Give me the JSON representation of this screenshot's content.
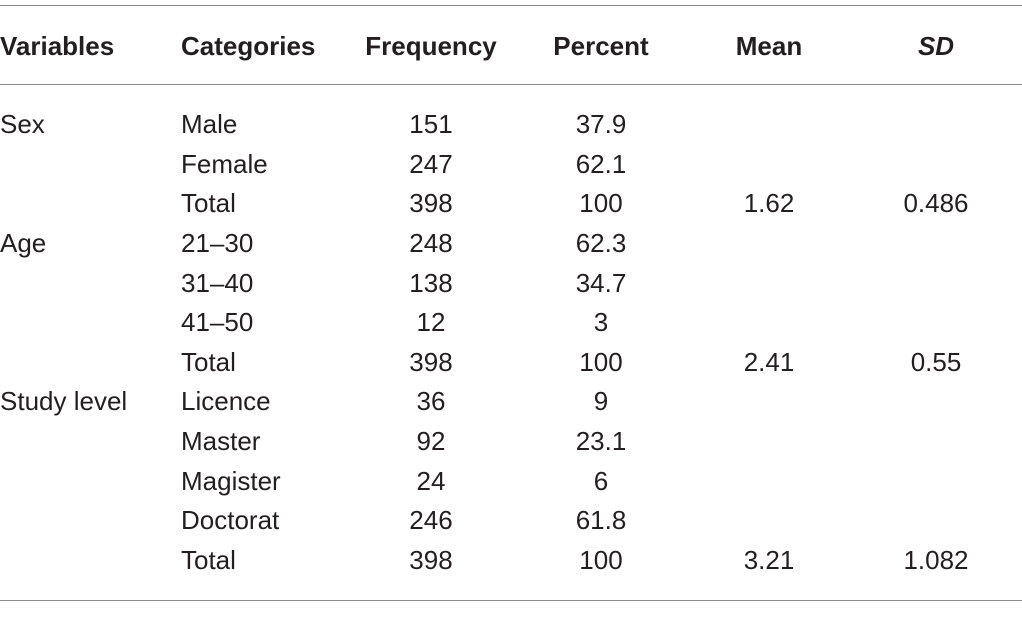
{
  "table": {
    "headers": {
      "variables": "Variables",
      "categories": "Categories",
      "frequency": "Frequency",
      "percent": "Percent",
      "mean": "Mean",
      "sd": "SD"
    },
    "rows": [
      {
        "variable": "Sex",
        "category": "Male",
        "frequency": "151",
        "percent": "37.9",
        "mean": "",
        "sd": ""
      },
      {
        "variable": "",
        "category": "Female",
        "frequency": "247",
        "percent": "62.1",
        "mean": "",
        "sd": ""
      },
      {
        "variable": "",
        "category": "Total",
        "frequency": "398",
        "percent": "100",
        "mean": "1.62",
        "sd": "0.486"
      },
      {
        "variable": "Age",
        "category": "21–30",
        "frequency": "248",
        "percent": "62.3",
        "mean": "",
        "sd": ""
      },
      {
        "variable": "",
        "category": "31–40",
        "frequency": "138",
        "percent": "34.7",
        "mean": "",
        "sd": ""
      },
      {
        "variable": "",
        "category": "41–50",
        "frequency": "12",
        "percent": "3",
        "mean": "",
        "sd": ""
      },
      {
        "variable": "",
        "category": "Total",
        "frequency": "398",
        "percent": "100",
        "mean": "2.41",
        "sd": "0.55"
      },
      {
        "variable": "Study level",
        "category": "Licence",
        "frequency": "36",
        "percent": "9",
        "mean": "",
        "sd": ""
      },
      {
        "variable": "",
        "category": "Master",
        "frequency": "92",
        "percent": "23.1",
        "mean": "",
        "sd": ""
      },
      {
        "variable": "",
        "category": "Magister",
        "frequency": "24",
        "percent": "6",
        "mean": "",
        "sd": ""
      },
      {
        "variable": "",
        "category": "Doctorat",
        "frequency": "246",
        "percent": "61.8",
        "mean": "",
        "sd": ""
      },
      {
        "variable": "",
        "category": "Total",
        "frequency": "398",
        "percent": "100",
        "mean": "3.21",
        "sd": "1.082"
      }
    ]
  }
}
